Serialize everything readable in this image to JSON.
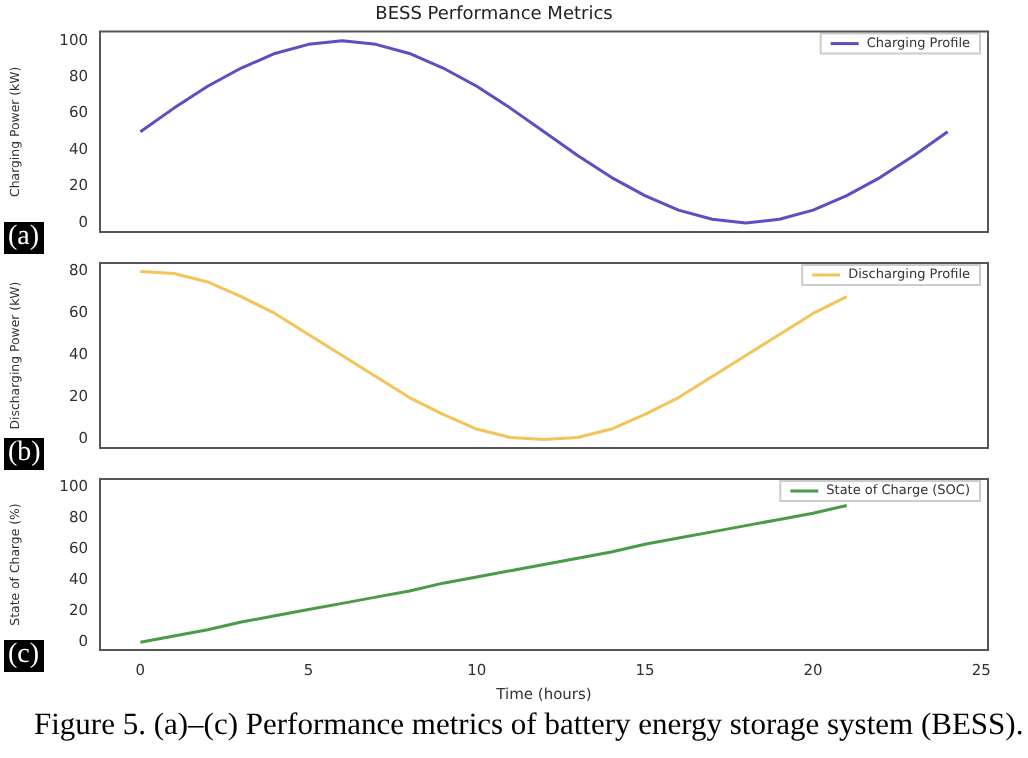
{
  "chart_data": [
    {
      "type": "line",
      "title": "BESS Performance Metrics",
      "ylabel": "Charging Power (kW)",
      "annotations": [
        "(a)"
      ],
      "x": [
        0,
        1,
        2,
        3,
        4,
        5,
        6,
        7,
        8,
        9,
        10,
        11,
        12,
        13,
        14,
        15,
        16,
        17,
        18,
        19,
        20,
        21,
        22,
        23,
        24
      ],
      "series": [
        {
          "name": "Charging Profile",
          "color": "#5b4fc4",
          "values": [
            50,
            63,
            75,
            85,
            93,
            98,
            100,
            98,
            93,
            85,
            75,
            63,
            50,
            37,
            25,
            15,
            7,
            2,
            0,
            2,
            7,
            15,
            25,
            37,
            50
          ]
        }
      ],
      "xlim": [
        -1.2,
        25.2
      ],
      "xticks": [
        0,
        5,
        10,
        15,
        20,
        25
      ],
      "ylim": [
        -5,
        105
      ],
      "yticks": [
        0,
        20,
        40,
        60,
        80,
        100
      ],
      "tick_labels": "y",
      "legend": "top right",
      "marker": "none",
      "line_style": "solid"
    },
    {
      "type": "line",
      "ylabel": "Discharging Power (kW)",
      "annotations": [
        "(b)"
      ],
      "series": [
        {
          "name": "Discharging Profile",
          "color": "#f2c45a",
          "x": [
            0,
            1,
            2,
            3,
            4,
            5,
            6,
            7,
            8,
            9,
            10,
            11,
            12,
            13,
            14,
            15,
            16,
            17,
            18,
            19,
            20,
            21
          ],
          "values": [
            80,
            79,
            75,
            68,
            60,
            50,
            40,
            30,
            20,
            12,
            5,
            1,
            0,
            1,
            5,
            12,
            20,
            30,
            40,
            50,
            60,
            68
          ]
        }
      ],
      "xlim": [
        -1.2,
        25.2
      ],
      "xticks": [
        0,
        5,
        10,
        15,
        20,
        25
      ],
      "ylim": [
        -4,
        84
      ],
      "yticks": [
        0,
        20,
        40,
        60,
        80
      ],
      "tick_labels": "y",
      "legend": "top right",
      "marker": "none",
      "line_style": "solid"
    },
    {
      "type": "line",
      "xlabel": "Time (hours)",
      "ylabel": "State of Charge (%)",
      "annotations": [
        "(c)",
        "Figure 5. (a)–(c) Performance metrics of battery energy storage system (BESS)."
      ],
      "series": [
        {
          "name": "State of Charge (SOC)",
          "color": "#4a9a4a",
          "x": [
            0,
            1,
            2,
            3,
            4,
            5,
            6,
            7,
            8,
            9,
            10,
            11,
            12,
            13,
            14,
            15,
            16,
            17,
            18,
            19,
            20,
            21
          ],
          "values": [
            0,
            4,
            8,
            13,
            17,
            21,
            25,
            29,
            33,
            38,
            42,
            46,
            50,
            54,
            58,
            63,
            67,
            71,
            75,
            79,
            83,
            88
          ]
        }
      ],
      "xlim": [
        -1.2,
        25.2
      ],
      "xticks": [
        0,
        5,
        10,
        15,
        20,
        25
      ],
      "ylim": [
        -5,
        105
      ],
      "yticks": [
        0,
        20,
        40,
        60,
        80,
        100
      ],
      "legend": "top right",
      "marker": "none",
      "line_style": "solid"
    }
  ]
}
